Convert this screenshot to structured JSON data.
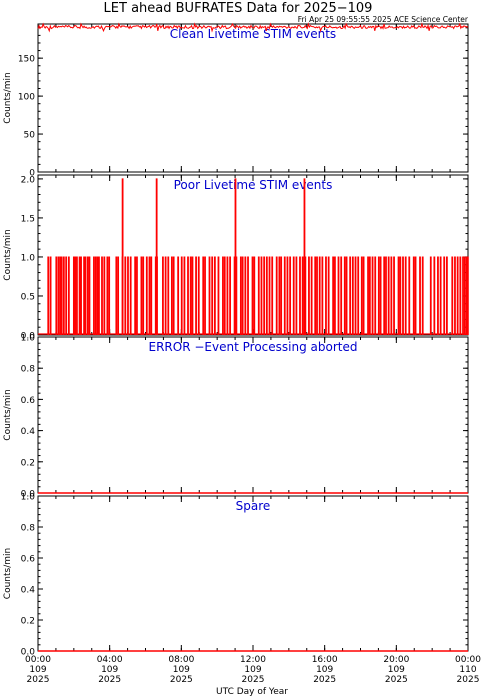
{
  "title": "LET ahead BUFRATES Data for 2025−109",
  "timestamp": "Fri Apr 25 09:55:55 2025 ACE Science Center",
  "colors": {
    "data": "#ff0000",
    "label": "#0000cc",
    "axis": "#000000",
    "background": "#ffffff"
  },
  "chart_data": [
    {
      "type": "line",
      "title": "Clean Livetime STIM events",
      "ylabel": "Counts/min",
      "ylim": [
        0,
        195
      ],
      "yticks": [
        "0",
        "50",
        "100",
        "150"
      ],
      "series": [
        {
          "x_range_hours": [
            0,
            24
          ],
          "values_min": 186,
          "values_max": 195,
          "typical": 191
        }
      ]
    },
    {
      "type": "line",
      "title": "Poor Livetime STIM events",
      "ylabel": "Counts/min",
      "ylim": [
        0,
        2.05
      ],
      "yticks": [
        "0.0",
        "0.5",
        "1.0",
        "1.5",
        "2.0"
      ],
      "series": [
        {
          "spikes_value_1": [
            0.55,
            0.68,
            1.0,
            1.12,
            1.22,
            1.3,
            1.42,
            1.55,
            1.7,
            1.98,
            2.05,
            2.15,
            2.3,
            2.38,
            2.55,
            2.62,
            2.75,
            2.85,
            3.1,
            3.2,
            3.3,
            3.38,
            3.55,
            3.68,
            3.85,
            3.95,
            4.35,
            4.45,
            4.7,
            4.85,
            5.0,
            5.15,
            5.4,
            5.5,
            5.75,
            5.85,
            6.05,
            6.2,
            6.3,
            6.55,
            6.62,
            6.95,
            7.1,
            7.25,
            7.45,
            7.55,
            7.8,
            8.0,
            8.15,
            8.35,
            8.5,
            8.6,
            8.8,
            8.95,
            9.2,
            9.3,
            9.55,
            9.7,
            9.85,
            10.05,
            10.3,
            10.4,
            10.55,
            10.7,
            10.95,
            11.05,
            11.3,
            11.4,
            11.55,
            11.7,
            11.95,
            12.05,
            12.3,
            12.45,
            12.6,
            12.75,
            12.9,
            13.05,
            13.3,
            13.45,
            13.55,
            13.75,
            13.9,
            14.05,
            14.25,
            14.4,
            14.6,
            14.75,
            14.9,
            15.1,
            15.25,
            15.45,
            15.55,
            15.7,
            15.85,
            16.05,
            16.2,
            16.45,
            16.55,
            16.75,
            16.9,
            17.1,
            17.2,
            17.4,
            17.55,
            17.7,
            17.85,
            18.05,
            18.15,
            18.4,
            18.5,
            18.65,
            18.8,
            19.0,
            19.1,
            19.3,
            19.4,
            19.55,
            19.7,
            19.85,
            20.1,
            20.2,
            20.35,
            20.5,
            20.7,
            20.95,
            21.05,
            21.3,
            21.45,
            21.9,
            22.1,
            22.3,
            22.45,
            22.65,
            22.8,
            23.1,
            23.25,
            23.4,
            23.55,
            23.7,
            23.8,
            23.9,
            23.97
          ],
          "spikes_value_2": [
            4.7,
            6.6,
            11.0,
            14.85
          ]
        }
      ]
    },
    {
      "type": "line",
      "title": "ERROR −Event Processing aborted",
      "ylabel": "Counts/min",
      "ylim": [
        0,
        1.0
      ],
      "yticks": [
        "0.0",
        "0.2",
        "0.4",
        "0.6",
        "0.8",
        "1.0"
      ],
      "series": [
        {
          "constant": 0
        }
      ]
    },
    {
      "type": "line",
      "title": "Spare",
      "ylabel": "Counts/min",
      "ylim": [
        0,
        1.0
      ],
      "yticks": [
        "0.0",
        "0.2",
        "0.4",
        "0.6",
        "0.8",
        "1.0"
      ],
      "series": [
        {
          "constant": 0
        }
      ]
    }
  ],
  "xaxis": {
    "label": "UTC Day of Year",
    "range_hours": [
      0,
      24
    ],
    "ticks": [
      {
        "hour": 0,
        "time": "00:00",
        "doy": "109",
        "year": "2025"
      },
      {
        "hour": 4,
        "time": "04:00",
        "doy": "109",
        "year": "2025"
      },
      {
        "hour": 8,
        "time": "08:00",
        "doy": "109",
        "year": "2025"
      },
      {
        "hour": 12,
        "time": "12:00",
        "doy": "109",
        "year": "2025"
      },
      {
        "hour": 16,
        "time": "16:00",
        "doy": "109",
        "year": "2025"
      },
      {
        "hour": 20,
        "time": "20:00",
        "doy": "109",
        "year": "2025"
      },
      {
        "hour": 24,
        "time": "00:00",
        "doy": "110",
        "year": "2025"
      }
    ]
  }
}
